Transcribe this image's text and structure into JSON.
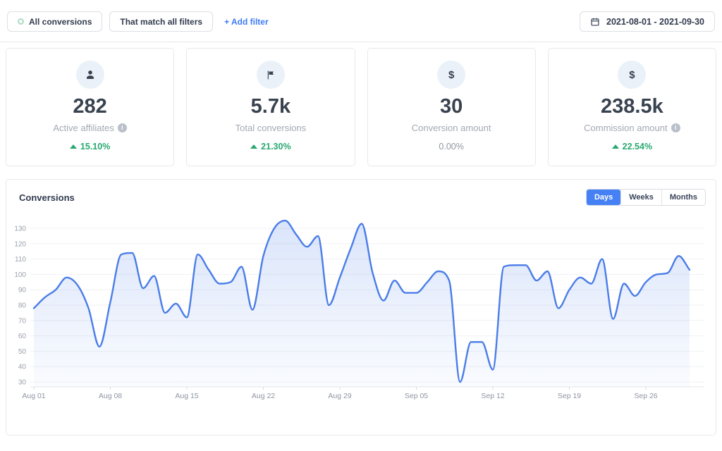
{
  "filter_bar": {
    "all_conversions": "All conversions",
    "match_all_filters": "That match all filters",
    "add_filter": "+ Add filter",
    "date_range": "2021-08-01 - 2021-09-30"
  },
  "glyphs": {
    "dollar": "$",
    "info": "i"
  },
  "stats": [
    {
      "icon": "user-icon",
      "value": "282",
      "label": "Active affiliates",
      "has_info": true,
      "delta": "15.10%",
      "trend": "up"
    },
    {
      "icon": "flag-icon",
      "value": "5.7k",
      "label": "Total conversions",
      "has_info": false,
      "delta": "21.30%",
      "trend": "up"
    },
    {
      "icon": "dollar-icon",
      "value": "30",
      "label": "Conversion amount",
      "has_info": false,
      "delta": "0.00%",
      "trend": "flat"
    },
    {
      "icon": "dollar-icon",
      "value": "238.5k",
      "label": "Commission amount",
      "has_info": true,
      "delta": "22.54%",
      "trend": "up"
    }
  ],
  "chart": {
    "title": "Conversions",
    "tabs": [
      {
        "label": "Days",
        "active": true
      },
      {
        "label": "Weeks",
        "active": false
      },
      {
        "label": "Months",
        "active": false
      }
    ]
  },
  "chart_data": {
    "type": "area",
    "title": "Conversions",
    "x_start": "Aug 01",
    "x_end": "Sep 30",
    "x_labels": [
      "Aug 01",
      "Aug 08",
      "Aug 15",
      "Aug 22",
      "Aug 29",
      "Sep 05",
      "Sep 12",
      "Sep 19",
      "Sep 26"
    ],
    "x_label_indices": [
      0,
      7,
      14,
      21,
      28,
      35,
      42,
      49,
      56
    ],
    "values": [
      78,
      85,
      90,
      98,
      93,
      78,
      53,
      82,
      113,
      114,
      91,
      99,
      75,
      81,
      72,
      113,
      103,
      94,
      95,
      105,
      77,
      112,
      130,
      135,
      126,
      118,
      125,
      80,
      98,
      117,
      133,
      101,
      83,
      96,
      88,
      88,
      95,
      102,
      96,
      30,
      56,
      56,
      38,
      105,
      106,
      106,
      96,
      102,
      78,
      90,
      98,
      94,
      110,
      71,
      94,
      86,
      95,
      100,
      101,
      112,
      103
    ],
    "y_ticks": [
      30,
      40,
      50,
      60,
      70,
      80,
      90,
      100,
      110,
      120,
      130
    ],
    "ylim": [
      27,
      137
    ],
    "grid": "horizontal",
    "legend": "none",
    "line_color": "#4a7de8",
    "fill_opacity_top": 0.2,
    "fill_opacity_bottom": 0.03
  },
  "colors": {
    "accent_blue": "#4680f5",
    "link_blue": "#3d7bf5",
    "positive_green": "#28a870",
    "text_dark": "#39424f",
    "text_muted": "#a2a8b3",
    "border": "#e7e8ea"
  }
}
